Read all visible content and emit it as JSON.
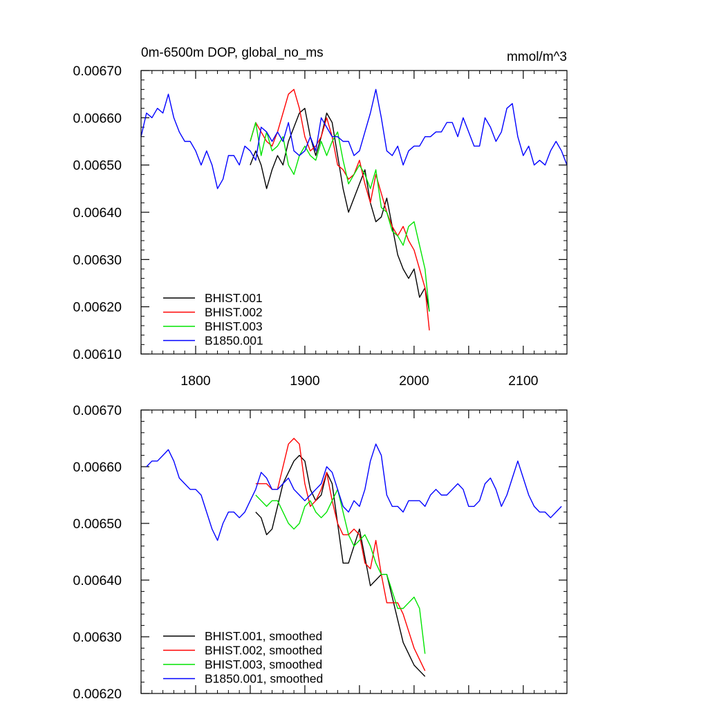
{
  "chart_data": [
    {
      "type": "line",
      "title": "0m-6500m DOP, global_no_ms",
      "units": "mmol/m^3",
      "xlim": [
        1750,
        2140
      ],
      "ylim": [
        0.0061,
        0.0067
      ],
      "xticks": [
        1800,
        1900,
        2000,
        2100
      ],
      "xtick_labels": [
        "1800",
        "1900",
        "2000",
        "2100"
      ],
      "yticks": [
        0.0061,
        0.0062,
        0.0063,
        0.0064,
        0.0065,
        0.0066,
        0.0067
      ],
      "ytick_labels": [
        "0.00610",
        "0.00620",
        "0.00630",
        "0.00640",
        "0.00650",
        "0.00660",
        "0.00670"
      ],
      "legend_position": "bottom-left",
      "grid": false,
      "series": [
        {
          "name": "BHIST.001",
          "color": "#000000",
          "x": [
            1850,
            1855,
            1860,
            1865,
            1870,
            1875,
            1880,
            1885,
            1890,
            1895,
            1900,
            1905,
            1910,
            1915,
            1920,
            1925,
            1930,
            1935,
            1940,
            1945,
            1950,
            1955,
            1960,
            1965,
            1970,
            1975,
            1980,
            1985,
            1990,
            1995,
            2000,
            2005,
            2010,
            2014
          ],
          "y": [
            0.0065,
            0.00653,
            0.0065,
            0.00645,
            0.00649,
            0.00652,
            0.0065,
            0.00655,
            0.00658,
            0.00661,
            0.00662,
            0.00656,
            0.00652,
            0.00656,
            0.00661,
            0.00659,
            0.00652,
            0.00645,
            0.0064,
            0.00643,
            0.00646,
            0.00649,
            0.00642,
            0.00638,
            0.00639,
            0.00643,
            0.00637,
            0.00631,
            0.00628,
            0.00626,
            0.00628,
            0.00622,
            0.00624,
            0.00619
          ]
        },
        {
          "name": "BHIST.002",
          "color": "#ff0000",
          "x": [
            1850,
            1855,
            1860,
            1865,
            1870,
            1875,
            1880,
            1885,
            1890,
            1895,
            1900,
            1905,
            1910,
            1915,
            1920,
            1925,
            1930,
            1935,
            1940,
            1945,
            1950,
            1955,
            1960,
            1965,
            1970,
            1975,
            1980,
            1985,
            1990,
            1995,
            2000,
            2005,
            2010,
            2014
          ],
          "y": [
            0.00655,
            0.00659,
            0.00657,
            0.00655,
            0.00654,
            0.00657,
            0.00661,
            0.00665,
            0.00666,
            0.00662,
            0.00656,
            0.00653,
            0.00654,
            0.00656,
            0.0066,
            0.00656,
            0.0065,
            0.00649,
            0.00647,
            0.00648,
            0.00651,
            0.00646,
            0.00642,
            0.00648,
            0.00644,
            0.0064,
            0.00637,
            0.00635,
            0.00637,
            0.00634,
            0.00632,
            0.00628,
            0.00624,
            0.00615
          ]
        },
        {
          "name": "BHIST.003",
          "color": "#00e400",
          "x": [
            1850,
            1855,
            1860,
            1865,
            1870,
            1875,
            1880,
            1885,
            1890,
            1895,
            1900,
            1905,
            1910,
            1915,
            1920,
            1925,
            1930,
            1935,
            1940,
            1945,
            1950,
            1955,
            1960,
            1965,
            1970,
            1975,
            1980,
            1985,
            1990,
            1995,
            2000,
            2005,
            2010,
            2014
          ],
          "y": [
            0.00655,
            0.00659,
            0.00652,
            0.00657,
            0.00653,
            0.00654,
            0.00656,
            0.0065,
            0.00648,
            0.00652,
            0.00654,
            0.00652,
            0.00651,
            0.00655,
            0.00652,
            0.00655,
            0.00657,
            0.00651,
            0.00646,
            0.00648,
            0.0065,
            0.00648,
            0.00645,
            0.00649,
            0.00641,
            0.0064,
            0.00636,
            0.00635,
            0.00633,
            0.00637,
            0.00638,
            0.00633,
            0.00628,
            0.00619
          ]
        },
        {
          "name": "B1850.001",
          "color": "#0000ff",
          "x": [
            1750,
            1755,
            1760,
            1765,
            1770,
            1775,
            1780,
            1785,
            1790,
            1795,
            1800,
            1805,
            1810,
            1815,
            1820,
            1825,
            1830,
            1835,
            1840,
            1845,
            1850,
            1855,
            1860,
            1865,
            1870,
            1875,
            1880,
            1885,
            1890,
            1895,
            1900,
            1905,
            1910,
            1915,
            1920,
            1925,
            1930,
            1935,
            1940,
            1945,
            1950,
            1955,
            1960,
            1965,
            1970,
            1975,
            1980,
            1985,
            1990,
            1995,
            2000,
            2005,
            2010,
            2015,
            2020,
            2025,
            2030,
            2035,
            2040,
            2045,
            2050,
            2055,
            2060,
            2065,
            2070,
            2075,
            2080,
            2085,
            2090,
            2095,
            2100,
            2105,
            2110,
            2115,
            2120,
            2125,
            2130,
            2135,
            2140
          ],
          "y": [
            0.00656,
            0.00661,
            0.0066,
            0.00662,
            0.00661,
            0.00665,
            0.0066,
            0.00657,
            0.00655,
            0.00655,
            0.00653,
            0.0065,
            0.00653,
            0.0065,
            0.00645,
            0.00647,
            0.00652,
            0.00652,
            0.0065,
            0.00654,
            0.00653,
            0.00651,
            0.00658,
            0.00657,
            0.00655,
            0.00657,
            0.00655,
            0.00659,
            0.00653,
            0.00652,
            0.00653,
            0.00656,
            0.00653,
            0.0066,
            0.00658,
            0.00656,
            0.00656,
            0.00655,
            0.00655,
            0.00652,
            0.00653,
            0.00657,
            0.00661,
            0.00666,
            0.0066,
            0.00653,
            0.00652,
            0.00654,
            0.0065,
            0.00653,
            0.00654,
            0.00654,
            0.00656,
            0.00656,
            0.00657,
            0.00657,
            0.00659,
            0.00659,
            0.00656,
            0.0066,
            0.00657,
            0.00654,
            0.00654,
            0.0066,
            0.00658,
            0.00655,
            0.00657,
            0.00662,
            0.00663,
            0.00656,
            0.00652,
            0.00654,
            0.0065,
            0.00651,
            0.0065,
            0.00653,
            0.00655,
            0.00653,
            0.0065
          ]
        }
      ]
    },
    {
      "type": "line",
      "xlim": [
        1750,
        2140
      ],
      "ylim": [
        0.0062,
        0.0067
      ],
      "xticks": [
        1800,
        1900,
        2000,
        2100
      ],
      "xtick_labels": [],
      "yticks": [
        0.0062,
        0.0063,
        0.0064,
        0.0065,
        0.0066,
        0.0067
      ],
      "ytick_labels": [
        "0.00620",
        "0.00630",
        "0.00640",
        "0.00650",
        "0.00660",
        "0.00670"
      ],
      "legend_position": "bottom-left",
      "grid": false,
      "series": [
        {
          "name": "BHIST.001, smoothed",
          "color": "#000000",
          "x": [
            1855,
            1860,
            1865,
            1870,
            1875,
            1880,
            1885,
            1890,
            1895,
            1900,
            1905,
            1910,
            1915,
            1920,
            1925,
            1930,
            1935,
            1940,
            1945,
            1950,
            1955,
            1960,
            1965,
            1970,
            1975,
            1980,
            1985,
            1990,
            1995,
            2000,
            2005,
            2010
          ],
          "y": [
            0.00652,
            0.00651,
            0.00648,
            0.00649,
            0.00653,
            0.00657,
            0.00659,
            0.00661,
            0.00662,
            0.00661,
            0.00656,
            0.00654,
            0.00655,
            0.00659,
            0.00657,
            0.0065,
            0.00643,
            0.00643,
            0.00646,
            0.00649,
            0.00644,
            0.00639,
            0.0064,
            0.00641,
            0.00641,
            0.00637,
            0.00633,
            0.00629,
            0.00627,
            0.00625,
            0.00624,
            0.00623
          ]
        },
        {
          "name": "BHIST.002, smoothed",
          "color": "#ff0000",
          "x": [
            1855,
            1860,
            1865,
            1870,
            1875,
            1880,
            1885,
            1890,
            1895,
            1900,
            1905,
            1910,
            1915,
            1920,
            1925,
            1930,
            1935,
            1940,
            1945,
            1950,
            1955,
            1960,
            1965,
            1970,
            1975,
            1980,
            1985,
            1990,
            1995,
            2000,
            2005,
            2010
          ],
          "y": [
            0.00657,
            0.00657,
            0.00657,
            0.00656,
            0.00656,
            0.0066,
            0.00664,
            0.00665,
            0.00664,
            0.00657,
            0.00653,
            0.00654,
            0.00656,
            0.00659,
            0.00654,
            0.0065,
            0.00648,
            0.00648,
            0.00649,
            0.00648,
            0.00643,
            0.00642,
            0.00647,
            0.00641,
            0.00636,
            0.00636,
            0.00636,
            0.00634,
            0.00631,
            0.00628,
            0.00626,
            0.00624
          ]
        },
        {
          "name": "BHIST.003, smoothed",
          "color": "#00e400",
          "x": [
            1855,
            1860,
            1865,
            1870,
            1875,
            1880,
            1885,
            1890,
            1895,
            1900,
            1905,
            1910,
            1915,
            1920,
            1925,
            1930,
            1935,
            1940,
            1945,
            1950,
            1955,
            1960,
            1965,
            1970,
            1975,
            1980,
            1985,
            1990,
            1995,
            2000,
            2005,
            2010
          ],
          "y": [
            0.00655,
            0.00654,
            0.00653,
            0.00654,
            0.00654,
            0.00652,
            0.0065,
            0.00649,
            0.0065,
            0.00653,
            0.00654,
            0.00652,
            0.00651,
            0.00652,
            0.00654,
            0.00656,
            0.00652,
            0.00648,
            0.00646,
            0.00647,
            0.00648,
            0.00646,
            0.00643,
            0.00641,
            0.00641,
            0.00638,
            0.00635,
            0.00635,
            0.00636,
            0.00637,
            0.00635,
            0.00627
          ]
        },
        {
          "name": "B1850.001, smoothed",
          "color": "#0000ff",
          "x": [
            1755,
            1760,
            1765,
            1770,
            1775,
            1780,
            1785,
            1790,
            1795,
            1800,
            1805,
            1810,
            1815,
            1820,
            1825,
            1830,
            1835,
            1840,
            1845,
            1850,
            1855,
            1860,
            1865,
            1870,
            1875,
            1880,
            1885,
            1890,
            1895,
            1900,
            1905,
            1910,
            1915,
            1920,
            1925,
            1930,
            1935,
            1940,
            1945,
            1950,
            1955,
            1960,
            1965,
            1970,
            1975,
            1980,
            1985,
            1990,
            1995,
            2000,
            2005,
            2010,
            2015,
            2020,
            2025,
            2030,
            2035,
            2040,
            2045,
            2050,
            2055,
            2060,
            2065,
            2070,
            2075,
            2080,
            2085,
            2090,
            2095,
            2100,
            2105,
            2110,
            2115,
            2120,
            2125,
            2130,
            2135
          ],
          "y": [
            0.0066,
            0.00661,
            0.00661,
            0.00662,
            0.00663,
            0.00661,
            0.00658,
            0.00657,
            0.00656,
            0.00656,
            0.00655,
            0.00652,
            0.00649,
            0.00647,
            0.0065,
            0.00652,
            0.00652,
            0.00651,
            0.00652,
            0.00654,
            0.00656,
            0.00659,
            0.00658,
            0.00656,
            0.00656,
            0.00657,
            0.00658,
            0.00656,
            0.00655,
            0.00654,
            0.00655,
            0.00656,
            0.00657,
            0.0066,
            0.00659,
            0.00656,
            0.00653,
            0.00652,
            0.00654,
            0.00653,
            0.00656,
            0.00661,
            0.00664,
            0.00662,
            0.00655,
            0.00653,
            0.00653,
            0.00652,
            0.00654,
            0.00654,
            0.00654,
            0.00653,
            0.00655,
            0.00656,
            0.00655,
            0.00655,
            0.00656,
            0.00657,
            0.00656,
            0.00653,
            0.00653,
            0.00654,
            0.00657,
            0.00658,
            0.00656,
            0.00653,
            0.00655,
            0.00658,
            0.00661,
            0.00658,
            0.00655,
            0.00653,
            0.00652,
            0.00652,
            0.00651,
            0.00652,
            0.00653
          ]
        }
      ]
    }
  ]
}
